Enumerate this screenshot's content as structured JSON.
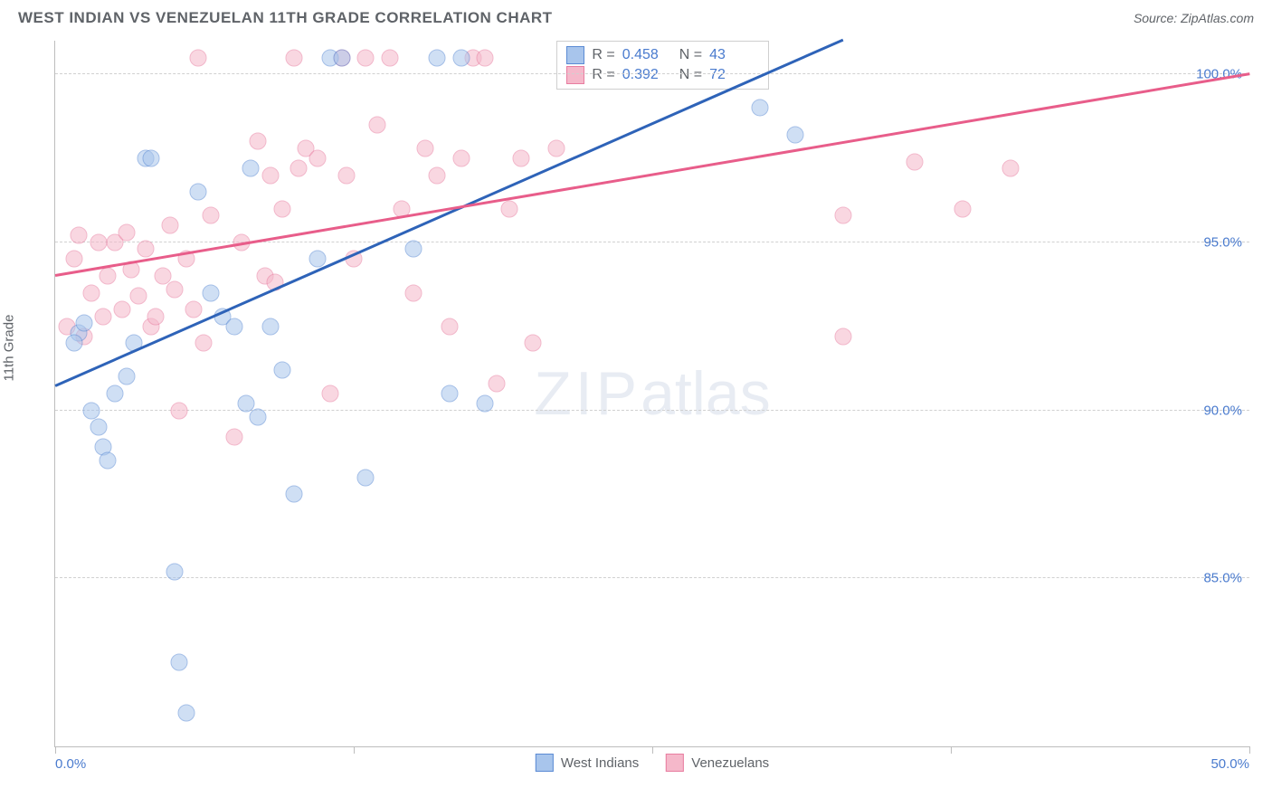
{
  "title": "WEST INDIAN VS VENEZUELAN 11TH GRADE CORRELATION CHART",
  "source": "Source: ZipAtlas.com",
  "ylabel": "11th Grade",
  "watermark_a": "ZIP",
  "watermark_b": "atlas",
  "chart": {
    "type": "scatter",
    "background_color": "#ffffff",
    "grid_color": "#d0d0d0",
    "axis_color": "#bdbdbd",
    "xlim": [
      0,
      50
    ],
    "ylim": [
      80,
      101
    ],
    "xticks": [
      0,
      25,
      50
    ],
    "xtick_labels": [
      "0.0%",
      "",
      "50.0%"
    ],
    "xtick_minor": [
      12.5,
      37.5
    ],
    "yticks": [
      85,
      90,
      95,
      100
    ],
    "ytick_labels": [
      "85.0%",
      "90.0%",
      "95.0%",
      "100.0%"
    ],
    "marker_size": 17,
    "marker_opacity": 0.55,
    "label_color": "#4a7bce",
    "text_color": "#5f6368",
    "label_fontsize": 15,
    "title_fontsize": 17
  },
  "series": [
    {
      "name": "West Indians",
      "fill": "#a8c5ec",
      "stroke": "#5b8bd4",
      "line_color": "#2e63b8",
      "R": "0.458",
      "N": "43",
      "trend": {
        "x1": 0,
        "y1": 90.7,
        "x2": 33,
        "y2": 101
      },
      "points": [
        [
          1,
          92.3
        ],
        [
          1.2,
          92.6
        ],
        [
          0.8,
          92.0
        ],
        [
          1.5,
          90.0
        ],
        [
          1.8,
          89.5
        ],
        [
          2.0,
          88.9
        ],
        [
          2.2,
          88.5
        ],
        [
          2.5,
          90.5
        ],
        [
          3.0,
          91.0
        ],
        [
          3.3,
          92.0
        ],
        [
          3.8,
          97.5
        ],
        [
          4.0,
          97.5
        ],
        [
          5.0,
          85.2
        ],
        [
          5.2,
          82.5
        ],
        [
          5.5,
          81.0
        ],
        [
          6.0,
          96.5
        ],
        [
          6.5,
          93.5
        ],
        [
          7.0,
          92.8
        ],
        [
          7.5,
          92.5
        ],
        [
          8.0,
          90.2
        ],
        [
          8.2,
          97.2
        ],
        [
          8.5,
          89.8
        ],
        [
          9.0,
          92.5
        ],
        [
          9.5,
          91.2
        ],
        [
          10.0,
          87.5
        ],
        [
          11.0,
          94.5
        ],
        [
          11.5,
          100.5
        ],
        [
          12.0,
          100.5
        ],
        [
          13.0,
          88.0
        ],
        [
          15.0,
          94.8
        ],
        [
          16.0,
          100.5
        ],
        [
          16.5,
          90.5
        ],
        [
          17.0,
          100.5
        ],
        [
          18.0,
          90.2
        ],
        [
          29.5,
          99.0
        ],
        [
          31.0,
          98.2
        ]
      ]
    },
    {
      "name": "Venezuelans",
      "fill": "#f5b8ca",
      "stroke": "#e87da0",
      "line_color": "#e85d8a",
      "R": "0.392",
      "N": "72",
      "trend": {
        "x1": 0,
        "y1": 94.0,
        "x2": 50,
        "y2": 100.0
      },
      "points": [
        [
          0.5,
          92.5
        ],
        [
          0.8,
          94.5
        ],
        [
          1.0,
          95.2
        ],
        [
          1.2,
          92.2
        ],
        [
          1.5,
          93.5
        ],
        [
          1.8,
          95.0
        ],
        [
          2.0,
          92.8
        ],
        [
          2.2,
          94.0
        ],
        [
          2.5,
          95.0
        ],
        [
          2.8,
          93.0
        ],
        [
          3.0,
          95.3
        ],
        [
          3.2,
          94.2
        ],
        [
          3.5,
          93.4
        ],
        [
          3.8,
          94.8
        ],
        [
          4.0,
          92.5
        ],
        [
          4.2,
          92.8
        ],
        [
          4.5,
          94.0
        ],
        [
          4.8,
          95.5
        ],
        [
          5.0,
          93.6
        ],
        [
          5.2,
          90.0
        ],
        [
          5.5,
          94.5
        ],
        [
          5.8,
          93.0
        ],
        [
          6.0,
          100.5
        ],
        [
          6.2,
          92.0
        ],
        [
          6.5,
          95.8
        ],
        [
          7.5,
          89.2
        ],
        [
          7.8,
          95.0
        ],
        [
          8.5,
          98.0
        ],
        [
          8.8,
          94.0
        ],
        [
          9.0,
          97.0
        ],
        [
          9.2,
          93.8
        ],
        [
          9.5,
          96.0
        ],
        [
          10.0,
          100.5
        ],
        [
          10.2,
          97.2
        ],
        [
          10.5,
          97.8
        ],
        [
          11.0,
          97.5
        ],
        [
          11.5,
          90.5
        ],
        [
          12.0,
          100.5
        ],
        [
          12.2,
          97.0
        ],
        [
          12.5,
          94.5
        ],
        [
          13.0,
          100.5
        ],
        [
          13.5,
          98.5
        ],
        [
          14.0,
          100.5
        ],
        [
          14.5,
          96.0
        ],
        [
          15.0,
          93.5
        ],
        [
          15.5,
          97.8
        ],
        [
          16.0,
          97.0
        ],
        [
          16.5,
          92.5
        ],
        [
          17.0,
          97.5
        ],
        [
          17.5,
          100.5
        ],
        [
          18.0,
          100.5
        ],
        [
          18.5,
          90.8
        ],
        [
          19.0,
          96.0
        ],
        [
          19.5,
          97.5
        ],
        [
          20.0,
          92.0
        ],
        [
          21.0,
          97.8
        ],
        [
          33.0,
          95.8
        ],
        [
          33.0,
          92.2
        ],
        [
          36.0,
          97.4
        ],
        [
          38.0,
          96.0
        ],
        [
          40.0,
          97.2
        ]
      ]
    }
  ],
  "legend": {
    "series1": "West Indians",
    "series2": "Venezuelans"
  },
  "stats": {
    "r_label": "R =",
    "n_label": "N ="
  }
}
